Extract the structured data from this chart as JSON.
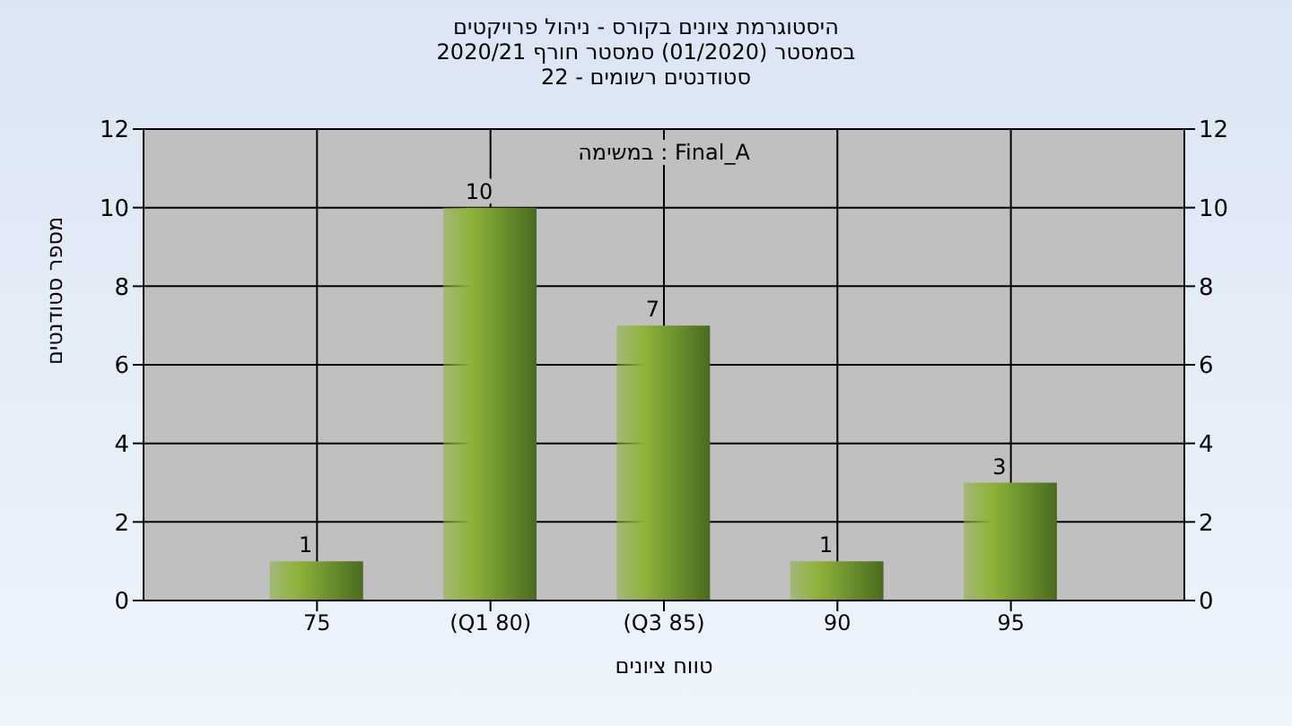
{
  "chart_data": {
    "type": "bar",
    "title": "היסטוגרמת ציונים בקורס - ניהול פרויקטים",
    "subtitle": "בסמסטר  (01/2020)  סמסטר חורף 2020/21\nסטודנטים רשומים - 22",
    "xlabel": "טווח ציונים",
    "ylabel": "מספר סטודנטים",
    "annotations": [
      "במשימה : Final_A"
    ],
    "categories": [
      "75",
      "(Q1 80)",
      "(Q3 85)",
      "90",
      "95"
    ],
    "values": [
      1,
      10,
      7,
      1,
      3
    ],
    "color": "#8db33a",
    "ylim": [
      0,
      12
    ],
    "yticks": [
      0,
      2,
      4,
      6,
      8,
      10,
      12
    ],
    "y2lim": [
      0,
      12
    ],
    "y2ticks": [
      0,
      2,
      4,
      6,
      8,
      10,
      12
    ],
    "grid": true,
    "data_labels": true
  }
}
